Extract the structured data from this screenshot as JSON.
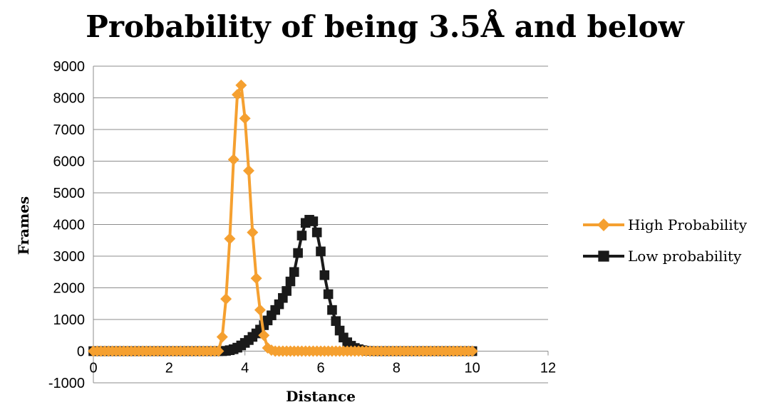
{
  "chart_data": {
    "type": "scatter",
    "title": "Probability of being 3.5Å and below",
    "xlabel": "Distance",
    "ylabel": "Frames",
    "xlim": [
      0,
      12
    ],
    "ylim": [
      -1000,
      9000
    ],
    "xticks": [
      0,
      2,
      4,
      6,
      8,
      10,
      12
    ],
    "yticks": [
      -1000,
      0,
      1000,
      2000,
      3000,
      4000,
      5000,
      6000,
      7000,
      8000,
      9000
    ],
    "grid": "horizontal",
    "legend": "right",
    "series": [
      {
        "name": "High Probability",
        "color": "#f5a030",
        "marker": "diamond",
        "x": [
          0,
          0.1,
          0.2,
          0.3,
          0.4,
          0.5,
          0.6,
          0.7,
          0.8,
          0.9,
          1.0,
          1.1,
          1.2,
          1.3,
          1.4,
          1.5,
          1.6,
          1.7,
          1.8,
          1.9,
          2.0,
          2.1,
          2.2,
          2.3,
          2.4,
          2.5,
          2.6,
          2.7,
          2.8,
          2.9,
          3.0,
          3.1,
          3.2,
          3.3,
          3.4,
          3.5,
          3.6,
          3.7,
          3.8,
          3.9,
          4.0,
          4.1,
          4.2,
          4.3,
          4.4,
          4.5,
          4.6,
          4.7,
          4.8,
          4.9,
          5.0,
          5.1,
          5.2,
          5.3,
          5.4,
          5.5,
          5.6,
          5.7,
          5.8,
          5.9,
          6.0,
          6.1,
          6.2,
          6.3,
          6.4,
          6.5,
          6.6,
          6.7,
          6.8,
          6.9,
          7.0,
          7.1,
          7.2,
          7.3,
          7.4,
          7.5,
          7.6,
          7.7,
          7.8,
          7.9,
          8.0,
          8.1,
          8.2,
          8.3,
          8.4,
          8.5,
          8.6,
          8.7,
          8.8,
          8.9,
          9.0,
          9.1,
          9.2,
          9.3,
          9.4,
          9.5,
          9.6,
          9.7,
          9.8,
          9.9,
          10.0
        ],
        "y": [
          0,
          0,
          0,
          0,
          0,
          0,
          0,
          0,
          0,
          0,
          0,
          0,
          0,
          0,
          0,
          0,
          0,
          0,
          0,
          0,
          0,
          0,
          0,
          0,
          0,
          0,
          0,
          0,
          0,
          0,
          0,
          0,
          0,
          0,
          450,
          1650,
          3550,
          6050,
          8100,
          8400,
          7350,
          5700,
          3750,
          2300,
          1300,
          500,
          100,
          30,
          0,
          0,
          0,
          0,
          0,
          0,
          0,
          0,
          0,
          0,
          0,
          0,
          0,
          0,
          0,
          0,
          0,
          0,
          0,
          0,
          0,
          0,
          0,
          0,
          0,
          0,
          0,
          0,
          0,
          0,
          0,
          0,
          0,
          0,
          0,
          0,
          0,
          0,
          0,
          0,
          0,
          0,
          0,
          0,
          0,
          0,
          0,
          0,
          0,
          0,
          0,
          0,
          0
        ]
      },
      {
        "name": "Low probability",
        "color": "#1a1a1a",
        "marker": "square",
        "x": [
          0,
          0.1,
          0.2,
          0.3,
          0.4,
          0.5,
          0.6,
          0.7,
          0.8,
          0.9,
          1.0,
          1.1,
          1.2,
          1.3,
          1.4,
          1.5,
          1.6,
          1.7,
          1.8,
          1.9,
          2.0,
          2.1,
          2.2,
          2.3,
          2.4,
          2.5,
          2.6,
          2.7,
          2.8,
          2.9,
          3.0,
          3.1,
          3.2,
          3.3,
          3.4,
          3.5,
          3.6,
          3.7,
          3.8,
          3.9,
          4.0,
          4.1,
          4.2,
          4.3,
          4.4,
          4.5,
          4.6,
          4.7,
          4.8,
          4.9,
          5.0,
          5.1,
          5.2,
          5.3,
          5.4,
          5.5,
          5.6,
          5.7,
          5.8,
          5.9,
          6.0,
          6.1,
          6.2,
          6.3,
          6.4,
          6.5,
          6.6,
          6.7,
          6.8,
          6.9,
          7.0,
          7.1,
          7.2,
          7.3,
          7.4,
          7.5,
          7.6,
          7.7,
          7.8,
          7.9,
          8.0,
          8.1,
          8.2,
          8.3,
          8.4,
          8.5,
          8.6,
          8.7,
          8.8,
          8.9,
          9.0,
          9.1,
          9.2,
          9.3,
          9.4,
          9.5,
          9.6,
          9.7,
          9.8,
          9.9,
          10.0
        ],
        "y": [
          0,
          0,
          0,
          0,
          0,
          0,
          0,
          0,
          0,
          0,
          0,
          0,
          0,
          0,
          0,
          0,
          0,
          0,
          0,
          0,
          0,
          0,
          0,
          0,
          0,
          0,
          0,
          0,
          0,
          0,
          0,
          0,
          0,
          0,
          0,
          10,
          30,
          60,
          110,
          180,
          260,
          350,
          450,
          560,
          680,
          820,
          970,
          1130,
          1300,
          1480,
          1680,
          1900,
          2200,
          2500,
          3100,
          3650,
          4050,
          4150,
          4100,
          3750,
          3150,
          2400,
          1800,
          1300,
          950,
          650,
          430,
          280,
          170,
          100,
          60,
          30,
          10,
          5,
          0,
          0,
          0,
          0,
          0,
          0,
          0,
          0,
          0,
          0,
          0,
          0,
          0,
          0,
          0,
          0,
          0,
          0,
          0,
          0,
          0,
          0,
          0,
          0,
          0,
          0,
          0
        ]
      }
    ]
  }
}
